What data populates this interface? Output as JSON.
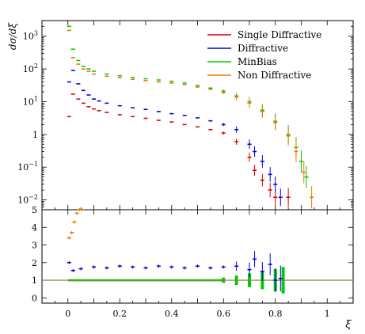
{
  "chart_data": [
    {
      "type": "scatter",
      "panel": "main",
      "ylabel": "dσ/dξ",
      "yscale": "log",
      "ylim": [
        0.005,
        3000
      ],
      "xlim": [
        -0.1,
        1.1
      ],
      "y_tick_labels": [
        {
          "v": 0.01,
          "base": "10",
          "exp": "−2"
        },
        {
          "v": 0.1,
          "base": "10",
          "exp": "−1"
        },
        {
          "v": 1,
          "base": "1",
          "exp": ""
        },
        {
          "v": 10,
          "base": "10",
          "exp": "1"
        },
        {
          "v": 100,
          "base": "10",
          "exp": "2"
        },
        {
          "v": 1000,
          "base": "10",
          "exp": "3"
        }
      ],
      "legend_position": "top-right",
      "series": [
        {
          "name": "Single Diffractive",
          "color": "#e00000",
          "points": [
            [
              0.005,
              3.5
            ],
            [
              0.02,
              17
            ],
            [
              0.04,
              12
            ],
            [
              0.06,
              9
            ],
            [
              0.08,
              7
            ],
            [
              0.1,
              6
            ],
            [
              0.12,
              5.3
            ],
            [
              0.15,
              4.7
            ],
            [
              0.2,
              4
            ],
            [
              0.25,
              3.5
            ],
            [
              0.3,
              3.1
            ],
            [
              0.35,
              2.7
            ],
            [
              0.4,
              2.4
            ],
            [
              0.45,
              2
            ],
            [
              0.5,
              1.7
            ],
            [
              0.55,
              1.4
            ],
            [
              0.6,
              1.1
            ],
            [
              0.65,
              0.6
            ],
            [
              0.7,
              0.2
            ],
            [
              0.72,
              0.08
            ],
            [
              0.75,
              0.04
            ],
            [
              0.78,
              0.02
            ],
            [
              0.8,
              0.012
            ],
            [
              0.85,
              0.012
            ]
          ]
        },
        {
          "name": "Diffractive",
          "color": "#0000e0",
          "points": [
            [
              0.005,
              40
            ],
            [
              0.02,
              90
            ],
            [
              0.04,
              35
            ],
            [
              0.06,
              22
            ],
            [
              0.08,
              16
            ],
            [
              0.1,
              12
            ],
            [
              0.12,
              10.5
            ],
            [
              0.15,
              9
            ],
            [
              0.2,
              7.5
            ],
            [
              0.25,
              6.5
            ],
            [
              0.3,
              5.8
            ],
            [
              0.35,
              5
            ],
            [
              0.4,
              4.3
            ],
            [
              0.45,
              3.8
            ],
            [
              0.5,
              3.2
            ],
            [
              0.55,
              2.6
            ],
            [
              0.6,
              2
            ],
            [
              0.65,
              1.4
            ],
            [
              0.7,
              0.5
            ],
            [
              0.72,
              0.3
            ],
            [
              0.75,
              0.15
            ],
            [
              0.78,
              0.06
            ],
            [
              0.8,
              0.03
            ],
            [
              0.82,
              0.012
            ]
          ]
        },
        {
          "name": "MinBias",
          "color": "#00cc00",
          "points": [
            [
              0.005,
              2000
            ],
            [
              0.02,
              400
            ],
            [
              0.04,
              180
            ],
            [
              0.06,
              120
            ],
            [
              0.08,
              100
            ],
            [
              0.1,
              85
            ],
            [
              0.15,
              70
            ],
            [
              0.2,
              62
            ],
            [
              0.25,
              55
            ],
            [
              0.3,
              50
            ],
            [
              0.35,
              46
            ],
            [
              0.4,
              42
            ],
            [
              0.45,
              37
            ],
            [
              0.5,
              31
            ],
            [
              0.55,
              26
            ],
            [
              0.6,
              21
            ],
            [
              0.65,
              15
            ],
            [
              0.7,
              10
            ],
            [
              0.75,
              5.5
            ],
            [
              0.8,
              2.5
            ],
            [
              0.85,
              1
            ],
            [
              0.88,
              0.4
            ],
            [
              0.9,
              0.15
            ],
            [
              0.92,
              0.05
            ]
          ]
        },
        {
          "name": "Non Diffractive",
          "color": "#f07800",
          "points": [
            [
              0.005,
              1500
            ],
            [
              0.02,
              220
            ],
            [
              0.04,
              140
            ],
            [
              0.06,
              100
            ],
            [
              0.08,
              85
            ],
            [
              0.1,
              70
            ],
            [
              0.15,
              60
            ],
            [
              0.2,
              54
            ],
            [
              0.25,
              48
            ],
            [
              0.3,
              44
            ],
            [
              0.35,
              40
            ],
            [
              0.4,
              37
            ],
            [
              0.45,
              33
            ],
            [
              0.5,
              28
            ],
            [
              0.55,
              24
            ],
            [
              0.6,
              19
            ],
            [
              0.65,
              14
            ],
            [
              0.7,
              9
            ],
            [
              0.75,
              5
            ],
            [
              0.8,
              2.3
            ],
            [
              0.85,
              0.9
            ],
            [
              0.88,
              0.3
            ],
            [
              0.91,
              0.07
            ],
            [
              0.94,
              0.012
            ]
          ]
        }
      ]
    },
    {
      "type": "scatter",
      "panel": "ratio",
      "xlabel": "ξ",
      "ylim": [
        -0.3,
        5
      ],
      "x_ticks": [
        0,
        0.2,
        0.4,
        0.6,
        0.8,
        1
      ],
      "x_tick_labels": [
        "0",
        "0.2",
        "0.4",
        "0.6",
        "0.8",
        "1"
      ],
      "y_ticks": [
        0,
        1,
        2,
        3,
        4,
        5
      ],
      "reference_line": 1,
      "series": [
        {
          "name": "Diffractive",
          "color": "#0000e0",
          "points": [
            [
              0.005,
              2.0
            ],
            [
              0.02,
              1.55
            ],
            [
              0.05,
              1.65
            ],
            [
              0.1,
              1.75
            ],
            [
              0.15,
              1.7
            ],
            [
              0.2,
              1.8
            ],
            [
              0.25,
              1.75
            ],
            [
              0.3,
              1.7
            ],
            [
              0.35,
              1.8
            ],
            [
              0.4,
              1.75
            ],
            [
              0.45,
              1.7
            ],
            [
              0.5,
              1.8
            ],
            [
              0.55,
              1.7
            ],
            [
              0.6,
              1.75
            ],
            [
              0.65,
              1.8
            ],
            [
              0.7,
              1.6
            ],
            [
              0.72,
              2.2
            ],
            [
              0.75,
              1.5
            ],
            [
              0.78,
              1.9
            ],
            [
              0.8,
              1.0
            ],
            [
              0.82,
              1.1
            ]
          ]
        },
        {
          "name": "Non Diffractive",
          "color": "#f07800",
          "points": [
            [
              0.005,
              3.4
            ],
            [
              0.015,
              3.7
            ],
            [
              0.025,
              4.3
            ],
            [
              0.035,
              4.8
            ],
            [
              0.045,
              5.0
            ],
            [
              0.055,
              5.0
            ]
          ]
        },
        {
          "name": "MinBias",
          "color": "#00cc00",
          "points": [
            [
              0.6,
              1.0
            ],
            [
              0.65,
              1.0
            ],
            [
              0.7,
              1.0
            ],
            [
              0.75,
              1.0
            ],
            [
              0.8,
              1.0
            ],
            [
              0.83,
              1.0
            ]
          ]
        }
      ]
    }
  ]
}
